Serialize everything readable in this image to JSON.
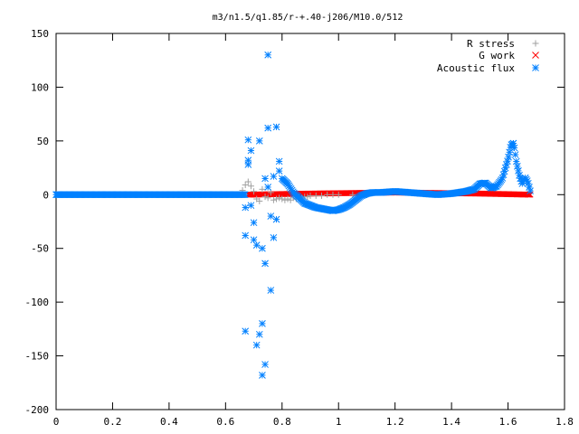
{
  "chart_data": {
    "type": "scatter",
    "title": "m3/n1.5/q1.85/r-+.40-j206/M10.0/512",
    "xlabel": "",
    "ylabel": "",
    "xlim": [
      0,
      1.8
    ],
    "ylim": [
      -200,
      150
    ],
    "xticks": [
      0,
      0.2,
      0.4,
      0.6,
      0.8,
      1,
      1.2,
      1.4,
      1.6,
      1.8
    ],
    "xtick_labels": [
      "0",
      "0.2",
      "0.4",
      "0.6",
      "0.8",
      "1",
      "1.2",
      "1.4",
      "1.6",
      "1.8"
    ],
    "yticks": [
      -200,
      -150,
      -100,
      -50,
      0,
      50,
      100,
      150
    ],
    "ytick_labels": [
      "-200",
      "-150",
      "-100",
      "-50",
      "0",
      "50",
      "100",
      "150"
    ],
    "grid": false,
    "legend_position": "top-right",
    "series": [
      {
        "name": "R stress",
        "marker": "plus",
        "color": "#a0a0a0",
        "x": [
          0.66,
          0.67,
          0.68,
          0.69,
          0.7,
          0.71,
          0.72,
          0.73,
          0.74,
          0.75,
          0.76,
          0.77,
          0.78,
          0.79,
          0.8,
          0.81,
          0.82,
          0.83,
          0.84,
          0.85,
          0.86,
          0.87,
          0.88,
          0.89,
          0.9,
          0.92,
          0.94,
          0.96,
          0.98,
          1.0,
          1.05,
          1.1
        ],
        "y": [
          4,
          9,
          12,
          8,
          3,
          -4,
          -6,
          5,
          -2,
          -3,
          2,
          -5,
          -4,
          -3,
          -4,
          -5,
          -4,
          -5,
          -3,
          -4,
          -2,
          -3,
          -2,
          -2,
          -1,
          -1,
          -1,
          0,
          0,
          0,
          0,
          0
        ]
      },
      {
        "name": "G work",
        "marker": "cross",
        "color": "#ff0000",
        "x_range": [
          0.68,
          1.68
        ],
        "y_values": [
          0,
          1,
          2,
          1,
          0
        ],
        "y_sample_x": [
          0.68,
          0.9,
          1.2,
          1.5,
          1.68
        ]
      },
      {
        "name": "Acoustic flux",
        "marker": "star",
        "color": "#0080ff",
        "x": [
          0.67,
          0.67,
          0.67,
          0.68,
          0.68,
          0.68,
          0.69,
          0.69,
          0.7,
          0.7,
          0.71,
          0.71,
          0.72,
          0.72,
          0.73,
          0.73,
          0.73,
          0.74,
          0.74,
          0.74,
          0.75,
          0.75,
          0.75,
          0.76,
          0.76,
          0.77,
          0.77,
          0.78,
          0.78,
          0.79,
          0.79
        ],
        "y": [
          -127,
          -38,
          -12,
          28,
          51,
          32,
          41,
          -10,
          -26,
          -42,
          -140,
          -47,
          -130,
          50,
          -168,
          -50,
          -120,
          -158,
          15,
          -64,
          62,
          130,
          7,
          -89,
          -20,
          -40,
          17,
          63,
          -23,
          31,
          22
        ],
        "curve_x": [
          0.8,
          0.82,
          0.84,
          0.86,
          0.88,
          0.9,
          0.92,
          0.94,
          0.96,
          0.98,
          1.0,
          1.02,
          1.04,
          1.06,
          1.08,
          1.1,
          1.12,
          1.15,
          1.2,
          1.25,
          1.3,
          1.35,
          1.4,
          1.45,
          1.48,
          1.5,
          1.52,
          1.54,
          1.56,
          1.58,
          1.6,
          1.61,
          1.62,
          1.63,
          1.64,
          1.65,
          1.66,
          1.67,
          1.68
        ],
        "curve_y": [
          15,
          10,
          2,
          -3,
          -8,
          -10,
          -12,
          -13,
          -14,
          -15,
          -14,
          -12,
          -9,
          -5,
          -1,
          1,
          2,
          2,
          3,
          2,
          1,
          0,
          1,
          3,
          5,
          10,
          11,
          6,
          8,
          15,
          33,
          46,
          48,
          30,
          18,
          10,
          16,
          12,
          2
        ]
      }
    ]
  }
}
